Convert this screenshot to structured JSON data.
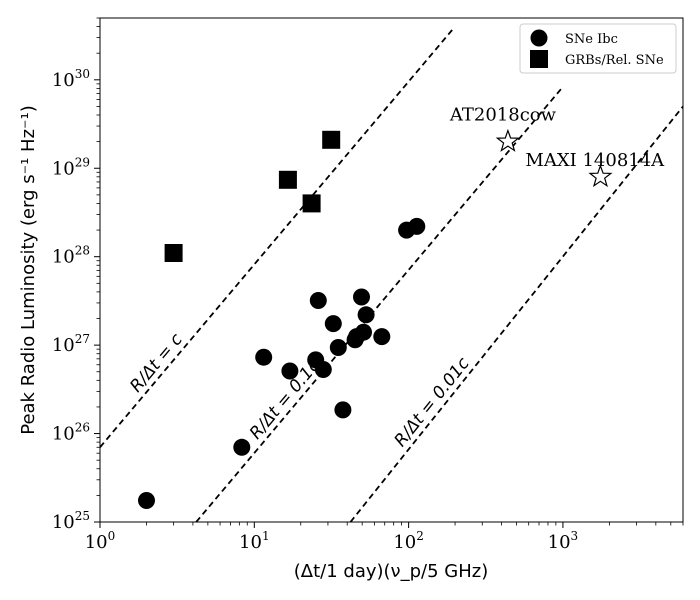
{
  "chart_data": {
    "type": "scatter",
    "xlabel": "(Δt/1 day)(ν_p/5 GHz)",
    "ylabel": "Peak Radio Luminosity (erg s⁻¹ Hz⁻¹)",
    "x_scale": "log",
    "y_scale": "log",
    "xlim": [
      1,
      6000
    ],
    "ylim": [
      1e+25,
      5e+30
    ],
    "x_ticks": [
      {
        "value": 1,
        "base": "10",
        "exp": "0"
      },
      {
        "value": 10,
        "base": "10",
        "exp": "1"
      },
      {
        "value": 100,
        "base": "10",
        "exp": "2"
      },
      {
        "value": 1000,
        "base": "10",
        "exp": "3"
      }
    ],
    "y_ticks": [
      {
        "value": 1e+25,
        "base": "10",
        "exp": "25"
      },
      {
        "value": 1e+26,
        "base": "10",
        "exp": "26"
      },
      {
        "value": 1e+27,
        "base": "10",
        "exp": "27"
      },
      {
        "value": 1e+28,
        "base": "10",
        "exp": "28"
      },
      {
        "value": 1e+29,
        "base": "10",
        "exp": "29"
      },
      {
        "value": 1e+30,
        "base": "10",
        "exp": "30"
      }
    ],
    "legend_position": "top-right",
    "series": [
      {
        "name": "SNe Ibc",
        "marker": "circle",
        "color": "#000000",
        "points": [
          {
            "x": 2.0,
            "y": 1.75e+25
          },
          {
            "x": 8.3,
            "y": 7e+25
          },
          {
            "x": 11.5,
            "y": 7.3e+26
          },
          {
            "x": 17.0,
            "y": 5.1e+26
          },
          {
            "x": 25.0,
            "y": 6.8e+26
          },
          {
            "x": 26.0,
            "y": 3.2e+27
          },
          {
            "x": 28.0,
            "y": 5.3e+26
          },
          {
            "x": 32.5,
            "y": 1.75e+27
          },
          {
            "x": 35.0,
            "y": 9.4e+26
          },
          {
            "x": 37.5,
            "y": 1.85e+26
          },
          {
            "x": 45.0,
            "y": 1.15e+27
          },
          {
            "x": 46.0,
            "y": 1.25e+27
          },
          {
            "x": 49.5,
            "y": 3.5e+27
          },
          {
            "x": 51.0,
            "y": 1.4e+27
          },
          {
            "x": 53.0,
            "y": 2.2e+27
          },
          {
            "x": 67.0,
            "y": 1.25e+27
          },
          {
            "x": 97.0,
            "y": 2e+28
          },
          {
            "x": 113.0,
            "y": 2.2e+28
          }
        ]
      },
      {
        "name": "GRBs/Rel. SNe",
        "marker": "square",
        "color": "#000000",
        "points": [
          {
            "x": 3.0,
            "y": 1.1e+28
          },
          {
            "x": 16.5,
            "y": 7.4e+28
          },
          {
            "x": 23.5,
            "y": 4e+28
          },
          {
            "x": 31.5,
            "y": 2.1e+29
          }
        ]
      }
    ],
    "annotations": [
      {
        "label": "AT2018cow",
        "marker": "star",
        "x": 440,
        "y": 2e+29
      },
      {
        "label": "MAXI 140814A",
        "marker": "star",
        "x": 1750,
        "y": 8e+28
      }
    ],
    "reference_lines": [
      {
        "label": "R/Δt = c",
        "x_start": 1,
        "y_start": 7e+25,
        "x_end": 195,
        "y_end": 3.8e+30
      },
      {
        "label": "R/Δt = 0.1c",
        "x_start": 4.2,
        "y_start": 1e+25,
        "x_end": 980,
        "y_end": 8e+29
      },
      {
        "label": "R/Δt = 0.01c",
        "x_start": 42,
        "y_start": 1e+25,
        "x_end": 6000,
        "y_end": 5e+29
      }
    ]
  }
}
